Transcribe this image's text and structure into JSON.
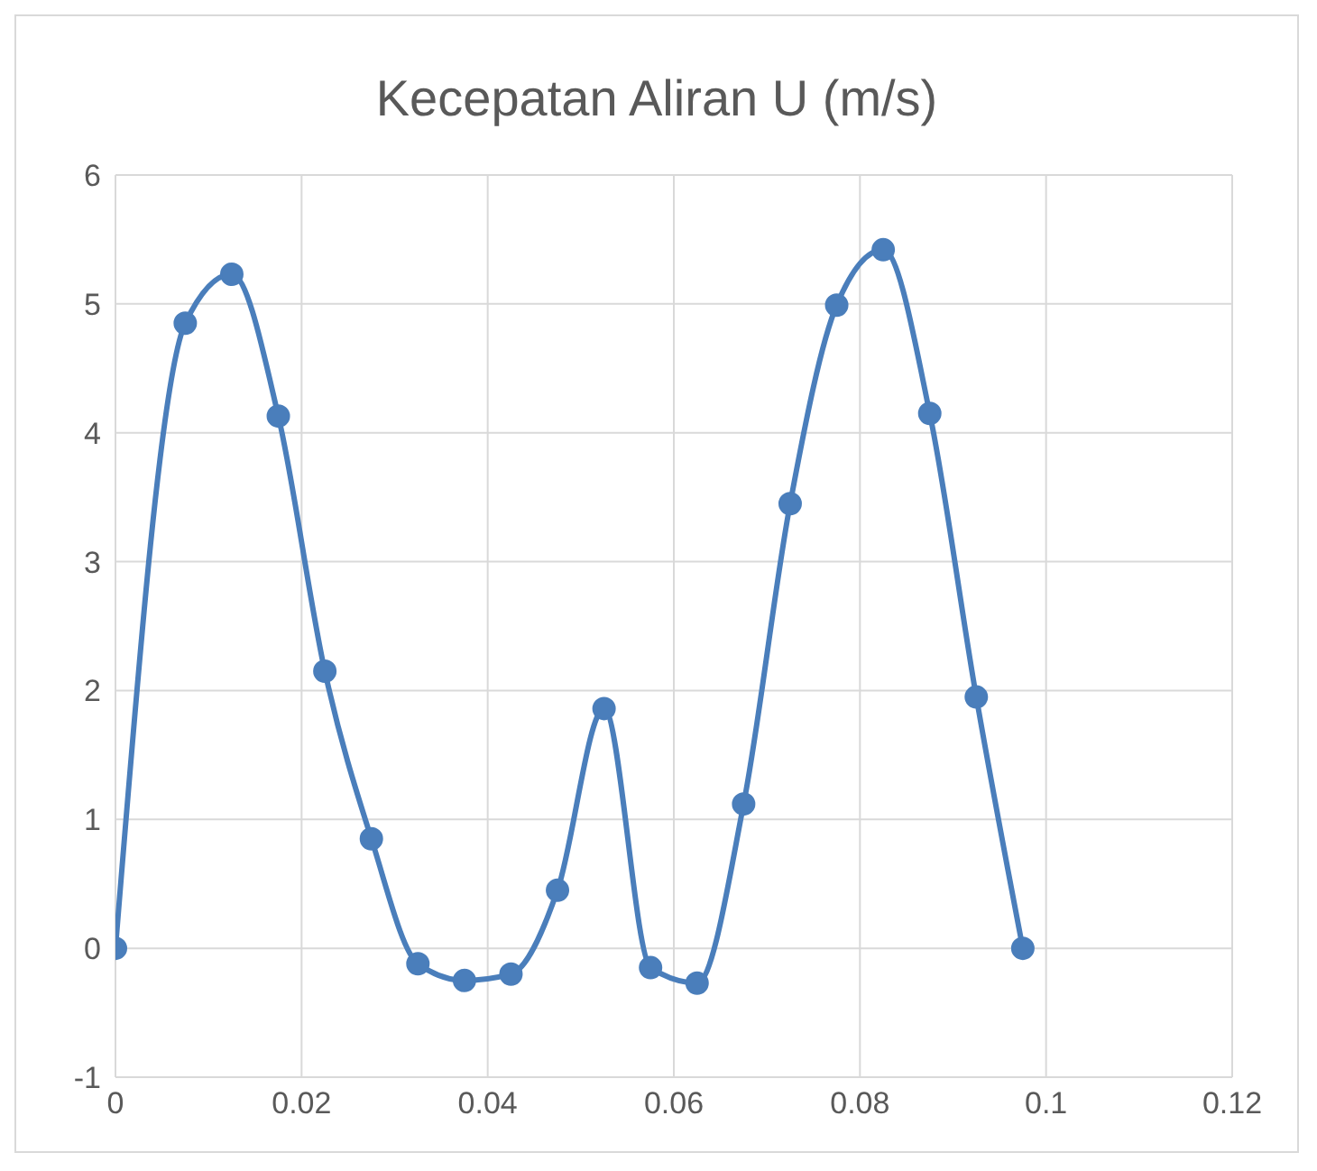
{
  "chart_data": {
    "type": "line",
    "title": "Kecepatan Aliran U (m/s)",
    "x": [
      0,
      0.0075,
      0.0125,
      0.0175,
      0.0225,
      0.0275,
      0.0325,
      0.0375,
      0.0425,
      0.0475,
      0.0525,
      0.0575,
      0.0625,
      0.0675,
      0.0725,
      0.0775,
      0.0825,
      0.0875,
      0.0925,
      0.0975
    ],
    "series": [
      {
        "color": "#4a7ebb",
        "values": [
          0,
          4.85,
          5.23,
          4.13,
          2.15,
          0.85,
          -0.12,
          -0.25,
          -0.2,
          0.45,
          1.86,
          -0.15,
          -0.27,
          1.12,
          3.45,
          4.99,
          5.42,
          4.15,
          1.95,
          0
        ]
      }
    ],
    "xlim": [
      0,
      0.12
    ],
    "xticks": [
      0,
      0.02,
      0.04,
      0.06,
      0.08,
      0.1,
      0.12
    ],
    "ylim": [
      -1,
      6
    ],
    "yticks": [
      -1,
      0,
      1,
      2,
      3,
      4,
      5,
      6
    ],
    "grid": true,
    "marker": "circle",
    "line_style": "solid"
  }
}
